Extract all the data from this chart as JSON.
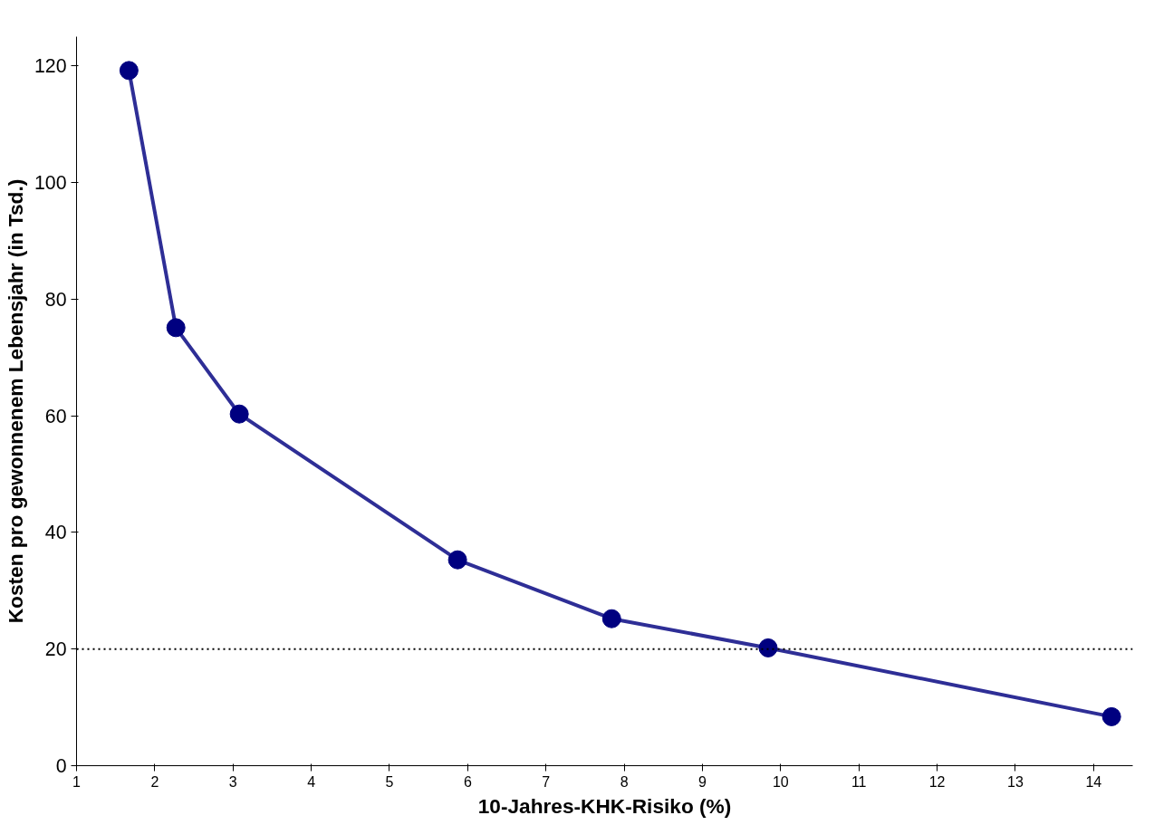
{
  "chart_data": {
    "type": "line",
    "xlabel": "10-Jahres-KHK-Risiko (%)",
    "ylabel": "Kosten pro gewonnenem Lebensjahr (in Tsd.)",
    "x": [
      1.67,
      2.27,
      3.08,
      5.87,
      7.84,
      9.84,
      14.23
    ],
    "series": [
      {
        "color": "#2e2e96",
        "values": [
          119.2,
          75.1,
          60.3,
          35.3,
          25.2,
          20.2,
          8.4
        ]
      }
    ],
    "marker": "circle",
    "line_style": "solid",
    "grid": false,
    "xlim": [
      1,
      14.5
    ],
    "xticks": [
      1,
      2,
      3,
      4,
      5,
      6,
      7,
      8,
      9,
      10,
      11,
      12,
      13,
      14
    ],
    "ylim": [
      0,
      125
    ],
    "yticks": [
      0,
      20,
      40,
      60,
      80,
      100,
      120
    ],
    "ref_lines": [
      {
        "axis": "y",
        "value": 20,
        "label": null,
        "color": "#000000",
        "line_style": "dotted"
      }
    ]
  }
}
